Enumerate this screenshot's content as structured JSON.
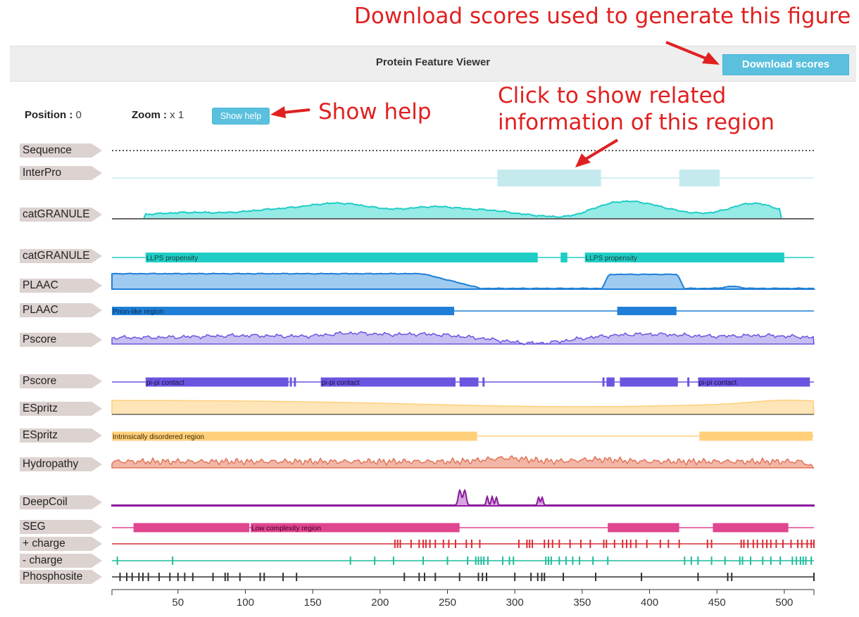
{
  "annotations": {
    "download": "Download scores used to generate this figure",
    "help": "Show help",
    "region": "Click to show related information of this region"
  },
  "header": {
    "title": "Protein Feature Viewer",
    "download_label": "Download scores"
  },
  "controls": {
    "position_label": "Position :",
    "position_value": "0",
    "zoom_label": "Zoom :",
    "zoom_value": "x 1",
    "help_label": "Show help"
  },
  "colors": {
    "annotation": "#e02020",
    "button": "#5bc0de",
    "interpro": "#c4eaee",
    "catgranule": "#1fcdc5",
    "plaac": "#1f7fd6",
    "pscore": "#6a55e0",
    "espritz": "#ffcf7a",
    "hydropathy": "#e0765a",
    "deepcoil": "#8b1a9c",
    "seg": "#e0458f",
    "plus_charge": "#d62f36",
    "minus_charge": "#1fbc9c",
    "phosphosite": "#333333"
  },
  "tracks": {
    "sequence": {
      "label": "Sequence"
    },
    "interpro": {
      "label": "InterPro",
      "regions": [
        [
          287,
          364
        ],
        [
          422,
          452
        ]
      ]
    },
    "catgranule_score": {
      "label": "catGRANULE"
    },
    "catgranule_regions": {
      "label": "catGRANULE",
      "regions": [
        {
          "start": 26,
          "end": 317,
          "text": "LLPS propensity"
        },
        {
          "start": 334,
          "end": 339,
          "text": ""
        },
        {
          "start": 352,
          "end": 500,
          "text": "LLPS propensity"
        }
      ]
    },
    "plaac_score": {
      "label": "PLAAC"
    },
    "plaac_regions": {
      "label": "PLAAC",
      "regions": [
        {
          "start": 1,
          "end": 255,
          "text": "Prion-like region"
        },
        {
          "start": 376,
          "end": 420,
          "text": ""
        }
      ]
    },
    "pscore_score": {
      "label": "Pscore"
    },
    "pscore_regions": {
      "label": "Pscore",
      "regions": [
        {
          "start": 26,
          "end": 132,
          "text": "pi-pi contact"
        },
        {
          "start": 133,
          "end": 134,
          "text": ""
        },
        {
          "start": 136,
          "end": 137,
          "text": ""
        },
        {
          "start": 156,
          "end": 256,
          "text": "pi-pi contact"
        },
        {
          "start": 259,
          "end": 273,
          "text": ""
        },
        {
          "start": 276,
          "end": 277,
          "text": ""
        },
        {
          "start": 365,
          "end": 366,
          "text": ""
        },
        {
          "start": 368,
          "end": 374,
          "text": ""
        },
        {
          "start": 378,
          "end": 421,
          "text": ""
        },
        {
          "start": 428,
          "end": 429,
          "text": ""
        },
        {
          "start": 436,
          "end": 519,
          "text": "pi-pi contact"
        }
      ]
    },
    "espritz_score": {
      "label": "ESpritz"
    },
    "espritz_regions": {
      "label": "ESpritz",
      "regions": [
        {
          "start": 1,
          "end": 272,
          "text": "Intrinsically disordered region"
        },
        {
          "start": 437,
          "end": 521,
          "text": ""
        }
      ]
    },
    "hydropathy": {
      "label": "Hydropathy"
    },
    "deepcoil": {
      "label": "DeepCoil"
    },
    "seg": {
      "label": "SEG",
      "regions": [
        {
          "start": 17,
          "end": 103,
          "text": ""
        },
        {
          "start": 104,
          "end": 259,
          "text": "Low complexity region"
        },
        {
          "start": 369,
          "end": 422,
          "text": ""
        },
        {
          "start": 447,
          "end": 503,
          "text": ""
        }
      ]
    },
    "plus_charge": {
      "label": "+ charge",
      "sites": [
        211,
        213,
        215,
        223,
        229,
        232,
        234,
        237,
        241,
        247,
        251,
        256,
        264,
        268,
        274,
        303,
        309,
        311,
        313,
        322,
        325,
        328,
        333,
        341,
        349,
        356,
        366,
        368,
        374,
        380,
        383,
        386,
        390,
        398,
        408,
        414,
        422,
        443,
        446,
        468,
        470,
        473,
        477,
        480,
        484,
        487,
        490,
        494,
        499,
        505,
        510,
        513,
        517,
        520,
        522
      ]
    },
    "minus_charge": {
      "label": "- charge",
      "sites": [
        5,
        46,
        178,
        196,
        210,
        232,
        250,
        265,
        271,
        273,
        275,
        277,
        280,
        291,
        296,
        299,
        323,
        325,
        327,
        333,
        338,
        343,
        348,
        358,
        369,
        426,
        431,
        436,
        446,
        456,
        467,
        469,
        475,
        484,
        490,
        497,
        506,
        509,
        512,
        514,
        516,
        520
      ]
    },
    "phosphosite": {
      "label": "Phosphosite",
      "sites": [
        7,
        12,
        16,
        21,
        24,
        28,
        36,
        44,
        50,
        55,
        61,
        76,
        85,
        87,
        96,
        111,
        114,
        128,
        138,
        218,
        229,
        233,
        241,
        259,
        273,
        276,
        279,
        300,
        312,
        317,
        320,
        322,
        336,
        360,
        394,
        436,
        458,
        461,
        522
      ]
    }
  },
  "axis": {
    "ticks": [
      50,
      100,
      150,
      200,
      250,
      300,
      350,
      400,
      450,
      500
    ],
    "min": 1,
    "max": 522
  }
}
